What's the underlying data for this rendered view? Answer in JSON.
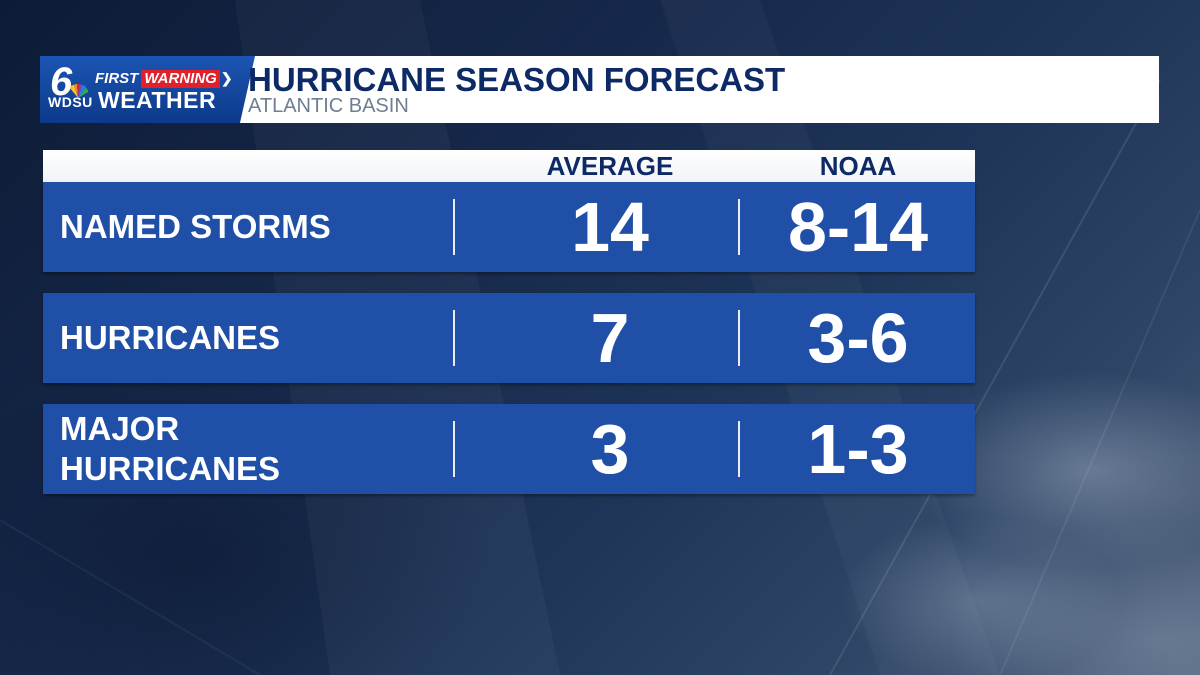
{
  "header": {
    "logo": {
      "six": "6",
      "first": "FIRST",
      "warning": "WARNING",
      "wdsu": "WDSU",
      "weather": "WEATHER"
    },
    "title": "HURRICANE SEASON FORECAST",
    "subtitle": "ATLANTIC BASIN"
  },
  "table": {
    "columns": [
      "AVERAGE",
      "NOAA"
    ],
    "rows": [
      {
        "label": "NAMED STORMS",
        "average": "14",
        "noaa": "8-14"
      },
      {
        "label": "HURRICANES",
        "average": "7",
        "noaa": "3-6"
      },
      {
        "label": "MAJOR HURRICANES",
        "average": "3",
        "noaa": "1-3"
      }
    ]
  },
  "colors": {
    "row_blue": "#1f4fa6",
    "title_navy": "#0d2a66",
    "warning_red": "#e0202a"
  }
}
